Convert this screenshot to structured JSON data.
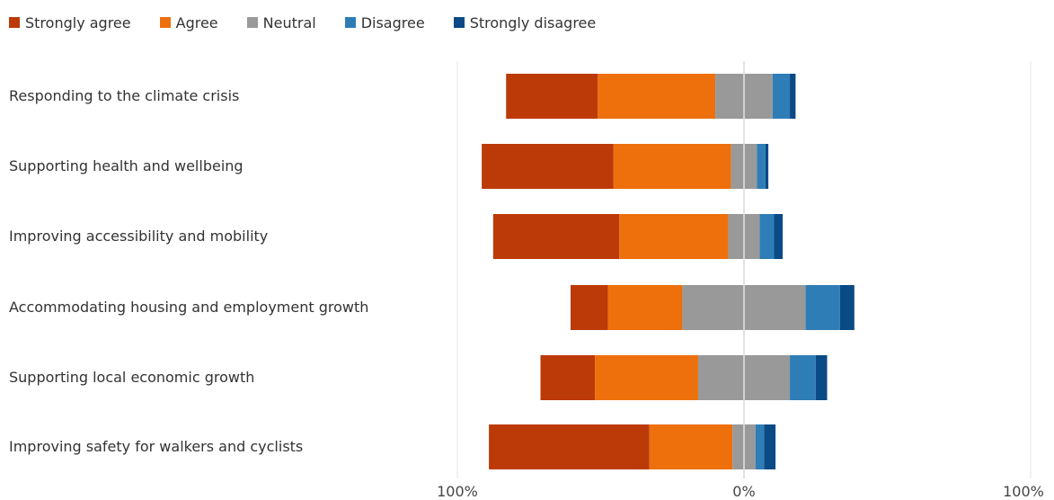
{
  "chart_data": {
    "type": "bar",
    "orientation": "horizontal-diverging-stacked",
    "categories": [
      "Responding to the climate crisis",
      "Supporting health and wellbeing",
      "Improving accessibility and mobility",
      "Accommodating housing and employment growth",
      "Supporting local economic growth",
      "Improving safety for walkers and cyclists"
    ],
    "series": [
      {
        "name": "Strongly agree",
        "color": "#bc3a07",
        "values": [
          32,
          46,
          44,
          13,
          19,
          56
        ]
      },
      {
        "name": "Agree",
        "color": "#ed700d",
        "values": [
          41,
          41,
          38,
          26,
          36,
          29
        ]
      },
      {
        "name": "Neutral",
        "color": "#999999",
        "values": [
          20,
          9,
          11,
          43,
          32,
          8
        ]
      },
      {
        "name": "Disagree",
        "color": "#2e7db7",
        "values": [
          6,
          3,
          5,
          12,
          9,
          3
        ]
      },
      {
        "name": "Strongly disagree",
        "color": "#0a4a85",
        "values": [
          2,
          1,
          3,
          5,
          4,
          4
        ]
      }
    ],
    "xlim": [
      -100,
      100
    ],
    "x_tick_labels": [
      "100%",
      "0%",
      "100%"
    ],
    "legend_position": "top-left",
    "grid": true
  }
}
